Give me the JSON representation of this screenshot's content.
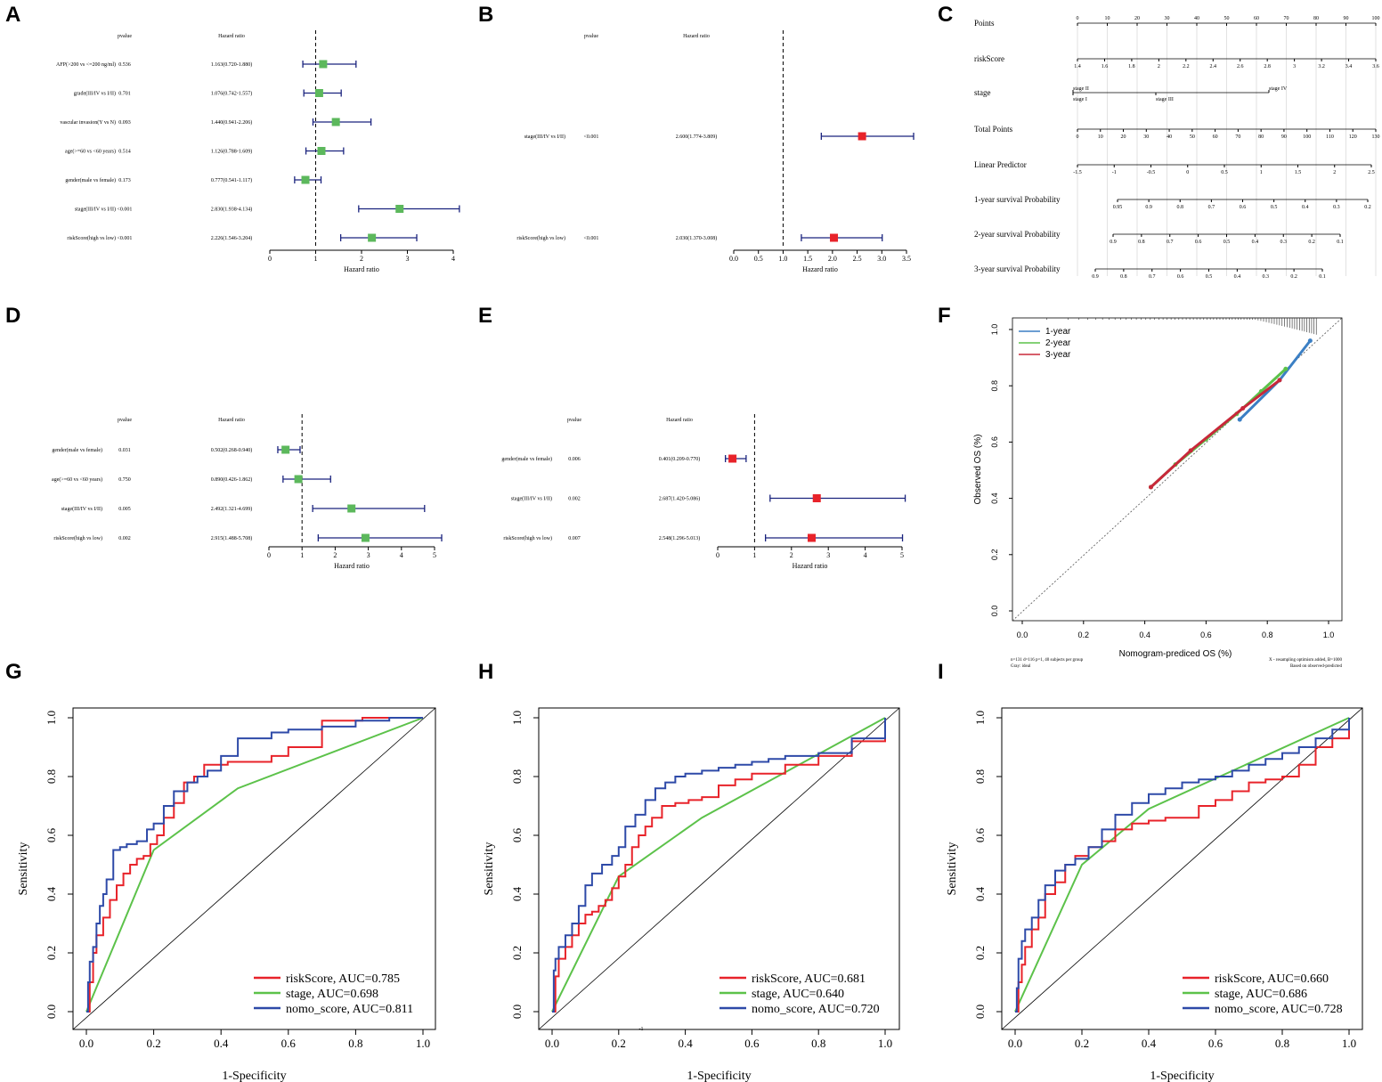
{
  "panels": {
    "A": "A",
    "B": "B",
    "C": "C",
    "D": "D",
    "E": "E",
    "F": "F",
    "G": "G",
    "H": "H",
    "I": "I"
  },
  "chart_data": [
    {
      "id": "A",
      "type": "forest",
      "pvalue_header": "pvalue",
      "hr_header": "Hazard ratio",
      "xlabel": "Hazard ratio",
      "xlim": [
        0,
        4
      ],
      "xticks": [
        0,
        1,
        2,
        3,
        4
      ],
      "refline": 1,
      "marker_color": "#5cb85c",
      "rows": [
        {
          "label": "AFP(>200 vs <=200 ng/ml)",
          "p": "0.536",
          "text": "1.163(0.720-1.880)",
          "hr": 1.163,
          "lo": 0.72,
          "hi": 1.88
        },
        {
          "label": "grade(III/IV vs I/II)",
          "p": "0.701",
          "text": "1.076(0.742-1.557)",
          "hr": 1.076,
          "lo": 0.742,
          "hi": 1.557
        },
        {
          "label": "vascular invasion(Y vs N)",
          "p": "0.093",
          "text": "1.440(0.941-2.206)",
          "hr": 1.44,
          "lo": 0.941,
          "hi": 2.206
        },
        {
          "label": "age(>=60 vs <60 years)",
          "p": "0.514",
          "text": "1.126(0.788-1.609)",
          "hr": 1.126,
          "lo": 0.788,
          "hi": 1.609
        },
        {
          "label": "gender(male vs female)",
          "p": "0.173",
          "text": "0.777(0.541-1.117)",
          "hr": 0.777,
          "lo": 0.541,
          "hi": 1.117
        },
        {
          "label": "stage(III/IV vs I/II)",
          "p": "<0.001",
          "text": "2.830(1.938-4.134)",
          "hr": 2.83,
          "lo": 1.938,
          "hi": 4.134
        },
        {
          "label": "riskScore(high vs low)",
          "p": "<0.001",
          "text": "2.226(1.546-3.204)",
          "hr": 2.226,
          "lo": 1.546,
          "hi": 3.204
        }
      ]
    },
    {
      "id": "B",
      "type": "forest",
      "pvalue_header": "pvalue",
      "hr_header": "Hazard ratio",
      "xlabel": "Hazard ratio",
      "xlim": [
        0,
        3.5
      ],
      "xticks": [
        0.0,
        0.5,
        1.0,
        1.5,
        2.0,
        2.5,
        3.0,
        3.5
      ],
      "refline": 1,
      "marker_color": "#e8232a",
      "rows": [
        {
          "label": "stage(III/IV vs I/II)",
          "p": "<0.001",
          "text": "2.600(1.774-3.809)",
          "hr": 2.6,
          "lo": 1.774,
          "hi": 3.809
        },
        {
          "label": "riskScore(high vs low)",
          "p": "<0.001",
          "text": "2.030(1.370-3.008)",
          "hr": 2.03,
          "lo": 1.37,
          "hi": 3.008
        }
      ]
    },
    {
      "id": "C",
      "type": "nomogram",
      "rows": [
        {
          "label": "Points",
          "ticks": [
            "0",
            "10",
            "20",
            "30",
            "40",
            "50",
            "60",
            "70",
            "80",
            "90",
            "100"
          ]
        },
        {
          "label": "riskScore",
          "ticks": [
            "1.4",
            "1.6",
            "1.8",
            "2",
            "2.2",
            "2.4",
            "2.6",
            "2.8",
            "3",
            "3.2",
            "3.4",
            "3.6"
          ]
        },
        {
          "label": "stage",
          "ticks": [
            "stage II",
            "stage IV",
            "stage I",
            "stage III"
          ]
        },
        {
          "label": "Total Points",
          "ticks": [
            "0",
            "10",
            "20",
            "30",
            "40",
            "50",
            "60",
            "70",
            "80",
            "90",
            "100",
            "110",
            "120",
            "130"
          ]
        },
        {
          "label": "Linear Predictor",
          "ticks": [
            "-1.5",
            "-1",
            "-0.5",
            "0",
            "0.5",
            "1",
            "1.5",
            "2",
            "2.5"
          ]
        },
        {
          "label": "1-year survival Probability",
          "ticks": [
            "0.95",
            "0.9",
            "0.8",
            "0.7",
            "0.6",
            "0.5",
            "0.4",
            "0.3",
            "0.2"
          ]
        },
        {
          "label": "2-year survival Probability",
          "ticks": [
            "0.9",
            "0.8",
            "0.7",
            "0.6",
            "0.5",
            "0.4",
            "0.3",
            "0.2",
            "0.1"
          ]
        },
        {
          "label": "3-year survival Probability",
          "ticks": [
            "0.9",
            "0.8",
            "0.7",
            "0.6",
            "0.5",
            "0.4",
            "0.3",
            "0.2",
            "0.1"
          ]
        }
      ]
    },
    {
      "id": "D",
      "type": "forest",
      "pvalue_header": "pvalue",
      "hr_header": "Hazard ratio",
      "xlabel": "Hazard ratio",
      "xlim": [
        0,
        5
      ],
      "xticks": [
        0,
        1,
        2,
        3,
        4,
        5
      ],
      "refline": 1,
      "marker_color": "#5cb85c",
      "rows": [
        {
          "label": "gender(male vs female)",
          "p": "0.031",
          "text": "0.502(0.268-0.940)",
          "hr": 0.502,
          "lo": 0.268,
          "hi": 0.94
        },
        {
          "label": "age(>=60 vs <60 years)",
          "p": "0.750",
          "text": "0.890(0.426-1.862)",
          "hr": 0.89,
          "lo": 0.426,
          "hi": 1.862
        },
        {
          "label": "stage(III/IV vs I/II)",
          "p": "0.005",
          "text": "2.492(1.321-4.699)",
          "hr": 2.492,
          "lo": 1.321,
          "hi": 4.699
        },
        {
          "label": "riskScore(high vs low)",
          "p": "0.002",
          "text": "2.915(1.488-5.708)",
          "hr": 2.915,
          "lo": 1.488,
          "hi": 5.708
        }
      ]
    },
    {
      "id": "E",
      "type": "forest",
      "pvalue_header": "pvalue",
      "hr_header": "Hazard ratio",
      "xlabel": "Hazard ratio",
      "xlim": [
        0,
        5
      ],
      "xticks": [
        0,
        1,
        2,
        3,
        4,
        5
      ],
      "refline": 1,
      "marker_color": "#e8232a",
      "rows": [
        {
          "label": "gender(male vs female)",
          "p": "0.006",
          "text": "0.401(0.209-0.770)",
          "hr": 0.401,
          "lo": 0.209,
          "hi": 0.77
        },
        {
          "label": "stage(III/IV vs I/II)",
          "p": "0.002",
          "text": "2.687(1.420-5.086)",
          "hr": 2.687,
          "lo": 1.42,
          "hi": 5.086
        },
        {
          "label": "riskScore(high vs low)",
          "p": "0.007",
          "text": "2.548(1.296-5.013)",
          "hr": 2.548,
          "lo": 1.296,
          "hi": 5.013
        }
      ]
    },
    {
      "id": "F",
      "type": "line",
      "title": "",
      "xlabel": "Nomogram-prediced OS (%)",
      "ylabel": "Observed OS (%)",
      "xlim": [
        0,
        1
      ],
      "ylim": [
        0,
        1
      ],
      "xticks": [
        "0.0",
        "0.2",
        "0.4",
        "0.6",
        "0.8",
        "1.0"
      ],
      "yticks": [
        "0.0",
        "0.2",
        "0.4",
        "0.6",
        "0.8",
        "1.0"
      ],
      "note_left": "n=131 d=116 p=1, 40 subjects per group",
      "note_left2": "Gray: ideal",
      "note_right": "X - resampling optimism added, B=1000",
      "note_right2": "Based on observed-predicted",
      "series": [
        {
          "name": "1-year",
          "color": "#3b7fc4",
          "x": [
            0.71,
            0.84,
            0.94
          ],
          "y": [
            0.68,
            0.82,
            0.96
          ]
        },
        {
          "name": "2-year",
          "color": "#5cc24a",
          "x": [
            0.42,
            0.5,
            0.6,
            0.7,
            0.78,
            0.86
          ],
          "y": [
            0.44,
            0.52,
            0.61,
            0.7,
            0.78,
            0.86
          ]
        },
        {
          "name": "3-year",
          "color": "#c8283a",
          "x": [
            0.42,
            0.55,
            0.72,
            0.84
          ],
          "y": [
            0.44,
            0.57,
            0.72,
            0.82
          ]
        }
      ]
    },
    {
      "id": "G",
      "type": "line",
      "xlabel": "1-Specificity",
      "ylabel": "Sensitivity",
      "xlim": [
        0,
        1
      ],
      "ylim": [
        0,
        1
      ],
      "xticks": [
        "0.0",
        "0.2",
        "0.4",
        "0.6",
        "0.8",
        "1.0"
      ],
      "yticks": [
        "0.0",
        "0.2",
        "0.4",
        "0.6",
        "0.8",
        "1.0"
      ],
      "series": [
        {
          "name": "riskScore, AUC=0.785",
          "color": "#e8232a",
          "x": [
            0,
            0.01,
            0.02,
            0.03,
            0.05,
            0.07,
            0.09,
            0.11,
            0.13,
            0.15,
            0.17,
            0.19,
            0.21,
            0.23,
            0.26,
            0.29,
            0.32,
            0.35,
            0.38,
            0.42,
            0.46,
            0.5,
            0.55,
            0.6,
            0.7,
            0.8,
            0.82,
            1.0
          ],
          "y": [
            0,
            0.1,
            0.2,
            0.26,
            0.32,
            0.38,
            0.43,
            0.47,
            0.5,
            0.52,
            0.53,
            0.57,
            0.6,
            0.66,
            0.71,
            0.78,
            0.8,
            0.84,
            0.84,
            0.85,
            0.85,
            0.85,
            0.87,
            0.9,
            0.99,
            0.99,
            1.0,
            1.0
          ]
        },
        {
          "name": "stage, AUC=0.698",
          "color": "#5cc24a",
          "x": [
            0,
            0.2,
            0.45,
            1.0
          ],
          "y": [
            0,
            0.55,
            0.76,
            1.0
          ]
        },
        {
          "name": "nomo_score, AUC=0.811",
          "color": "#2e4aa8",
          "x": [
            0,
            0.005,
            0.01,
            0.02,
            0.03,
            0.04,
            0.05,
            0.06,
            0.08,
            0.1,
            0.12,
            0.15,
            0.18,
            0.2,
            0.23,
            0.26,
            0.3,
            0.33,
            0.36,
            0.4,
            0.45,
            0.5,
            0.55,
            0.6,
            0.7,
            0.8,
            0.9,
            1.0
          ],
          "y": [
            0,
            0.1,
            0.17,
            0.22,
            0.3,
            0.36,
            0.4,
            0.45,
            0.55,
            0.56,
            0.57,
            0.58,
            0.62,
            0.64,
            0.7,
            0.75,
            0.78,
            0.8,
            0.82,
            0.87,
            0.93,
            0.93,
            0.95,
            0.96,
            0.97,
            0.99,
            1.0,
            1.0
          ]
        }
      ]
    },
    {
      "id": "H",
      "type": "line",
      "xlabel": "1-Specificity",
      "ylabel": "Sensitivity",
      "xlim": [
        0,
        1
      ],
      "ylim": [
        0,
        1
      ],
      "xticks": [
        "0.0",
        "0.2",
        "0.4",
        "0.6",
        "0.8",
        "1.0"
      ],
      "yticks": [
        "0.0",
        "0.2",
        "0.4",
        "0.6",
        "0.8",
        "1.0"
      ],
      "stray_mark": "-1",
      "series": [
        {
          "name": "riskScore, AUC=0.681",
          "color": "#e8232a",
          "x": [
            0,
            0.01,
            0.02,
            0.04,
            0.06,
            0.08,
            0.1,
            0.12,
            0.14,
            0.16,
            0.18,
            0.2,
            0.22,
            0.24,
            0.26,
            0.28,
            0.3,
            0.33,
            0.37,
            0.41,
            0.45,
            0.5,
            0.55,
            0.6,
            0.7,
            0.8,
            0.9,
            1.0
          ],
          "y": [
            0,
            0.12,
            0.18,
            0.22,
            0.26,
            0.3,
            0.33,
            0.34,
            0.36,
            0.38,
            0.42,
            0.46,
            0.5,
            0.56,
            0.6,
            0.63,
            0.66,
            0.7,
            0.71,
            0.72,
            0.73,
            0.77,
            0.79,
            0.81,
            0.84,
            0.87,
            0.92,
            1.0
          ]
        },
        {
          "name": "stage, AUC=0.640",
          "color": "#5cc24a",
          "x": [
            0,
            0.2,
            0.45,
            1.0
          ],
          "y": [
            0,
            0.46,
            0.66,
            1.0
          ]
        },
        {
          "name": "nomo_score, AUC=0.720",
          "color": "#2e4aa8",
          "x": [
            0,
            0.005,
            0.01,
            0.02,
            0.04,
            0.06,
            0.08,
            0.1,
            0.12,
            0.15,
            0.18,
            0.2,
            0.22,
            0.25,
            0.28,
            0.31,
            0.34,
            0.37,
            0.4,
            0.45,
            0.5,
            0.55,
            0.6,
            0.65,
            0.7,
            0.8,
            0.9,
            1.0
          ],
          "y": [
            0,
            0.14,
            0.18,
            0.22,
            0.26,
            0.3,
            0.36,
            0.43,
            0.47,
            0.5,
            0.53,
            0.56,
            0.63,
            0.67,
            0.72,
            0.76,
            0.78,
            0.8,
            0.81,
            0.82,
            0.83,
            0.84,
            0.85,
            0.86,
            0.87,
            0.88,
            0.93,
            1.0
          ]
        }
      ]
    },
    {
      "id": "I",
      "type": "line",
      "xlabel": "1-Specificity",
      "ylabel": "Sensitivity",
      "xlim": [
        0,
        1
      ],
      "ylim": [
        0,
        1
      ],
      "xticks": [
        "0.0",
        "0.2",
        "0.4",
        "0.6",
        "0.8",
        "1.0"
      ],
      "yticks": [
        "0.0",
        "0.2",
        "0.4",
        "0.6",
        "0.8",
        "1.0"
      ],
      "series": [
        {
          "name": "riskScore, AUC=0.660",
          "color": "#e8232a",
          "x": [
            0,
            0.01,
            0.02,
            0.03,
            0.05,
            0.07,
            0.09,
            0.12,
            0.15,
            0.18,
            0.22,
            0.26,
            0.3,
            0.35,
            0.4,
            0.45,
            0.5,
            0.55,
            0.6,
            0.65,
            0.7,
            0.75,
            0.8,
            0.85,
            0.9,
            0.95,
            1.0
          ],
          "y": [
            0,
            0.1,
            0.16,
            0.22,
            0.28,
            0.32,
            0.4,
            0.44,
            0.5,
            0.53,
            0.56,
            0.58,
            0.62,
            0.64,
            0.65,
            0.66,
            0.66,
            0.7,
            0.72,
            0.75,
            0.78,
            0.79,
            0.8,
            0.84,
            0.9,
            0.93,
            1.0
          ]
        },
        {
          "name": "stage, AUC=0.686",
          "color": "#5cc24a",
          "x": [
            0,
            0.2,
            0.4,
            1.0
          ],
          "y": [
            0,
            0.5,
            0.69,
            1.0
          ]
        },
        {
          "name": "nomo_score, AUC=0.728",
          "color": "#2e4aa8",
          "x": [
            0,
            0.005,
            0.01,
            0.02,
            0.03,
            0.05,
            0.07,
            0.09,
            0.12,
            0.15,
            0.18,
            0.22,
            0.26,
            0.3,
            0.35,
            0.4,
            0.45,
            0.5,
            0.55,
            0.6,
            0.65,
            0.7,
            0.75,
            0.8,
            0.85,
            0.9,
            0.95,
            1.0
          ],
          "y": [
            0,
            0.08,
            0.18,
            0.24,
            0.28,
            0.32,
            0.38,
            0.43,
            0.48,
            0.5,
            0.52,
            0.56,
            0.62,
            0.67,
            0.71,
            0.74,
            0.76,
            0.78,
            0.79,
            0.8,
            0.82,
            0.84,
            0.86,
            0.88,
            0.9,
            0.93,
            0.96,
            1.0
          ]
        }
      ]
    }
  ]
}
